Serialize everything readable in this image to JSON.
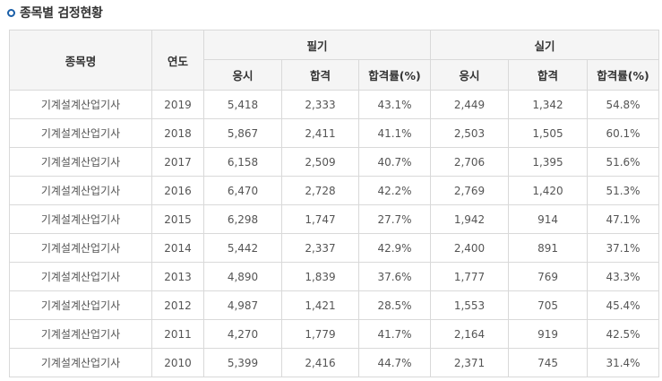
{
  "section": {
    "title": "종목별 검정현황"
  },
  "table": {
    "headers": {
      "name": "종목명",
      "year": "연도",
      "written": "필기",
      "practical": "실기",
      "applicants": "응시",
      "passed": "합격",
      "rate": "합격률(%)"
    },
    "rows": [
      {
        "name": "기계설계산업기사",
        "year": "2019",
        "w_app": "5,418",
        "w_pass": "2,333",
        "w_rate": "43.1%",
        "p_app": "2,449",
        "p_pass": "1,342",
        "p_rate": "54.8%"
      },
      {
        "name": "기계설계산업기사",
        "year": "2018",
        "w_app": "5,867",
        "w_pass": "2,411",
        "w_rate": "41.1%",
        "p_app": "2,503",
        "p_pass": "1,505",
        "p_rate": "60.1%"
      },
      {
        "name": "기계설계산업기사",
        "year": "2017",
        "w_app": "6,158",
        "w_pass": "2,509",
        "w_rate": "40.7%",
        "p_app": "2,706",
        "p_pass": "1,395",
        "p_rate": "51.6%"
      },
      {
        "name": "기계설계산업기사",
        "year": "2016",
        "w_app": "6,470",
        "w_pass": "2,728",
        "w_rate": "42.2%",
        "p_app": "2,769",
        "p_pass": "1,420",
        "p_rate": "51.3%"
      },
      {
        "name": "기계설계산업기사",
        "year": "2015",
        "w_app": "6,298",
        "w_pass": "1,747",
        "w_rate": "27.7%",
        "p_app": "1,942",
        "p_pass": "914",
        "p_rate": "47.1%"
      },
      {
        "name": "기계설계산업기사",
        "year": "2014",
        "w_app": "5,442",
        "w_pass": "2,337",
        "w_rate": "42.9%",
        "p_app": "2,400",
        "p_pass": "891",
        "p_rate": "37.1%"
      },
      {
        "name": "기계설계산업기사",
        "year": "2013",
        "w_app": "4,890",
        "w_pass": "1,839",
        "w_rate": "37.6%",
        "p_app": "1,777",
        "p_pass": "769",
        "p_rate": "43.3%"
      },
      {
        "name": "기계설계산업기사",
        "year": "2012",
        "w_app": "4,987",
        "w_pass": "1,421",
        "w_rate": "28.5%",
        "p_app": "1,553",
        "p_pass": "705",
        "p_rate": "45.4%"
      },
      {
        "name": "기계설계산업기사",
        "year": "2011",
        "w_app": "4,270",
        "w_pass": "1,779",
        "w_rate": "41.7%",
        "p_app": "2,164",
        "p_pass": "919",
        "p_rate": "42.5%"
      },
      {
        "name": "기계설계산업기사",
        "year": "2010",
        "w_app": "5,399",
        "w_pass": "2,416",
        "w_rate": "44.7%",
        "p_app": "2,371",
        "p_pass": "745",
        "p_rate": "31.4%"
      }
    ]
  }
}
